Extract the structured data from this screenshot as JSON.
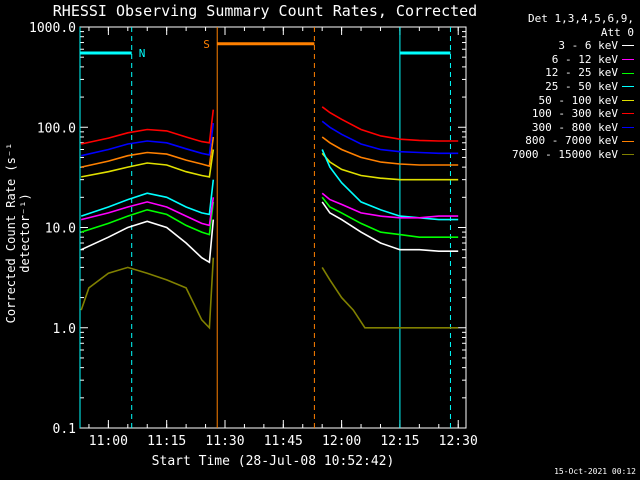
{
  "chart_data": {
    "type": "line",
    "title": "RHESSI Observing Summary Count Rates, Corrected",
    "xlabel": "Start Time (28-Jul-08 10:52:42)",
    "ylabel": "Corrected Count Rate (s⁻¹ detector⁻¹)",
    "yscale": "log",
    "ylim": [
      0.1,
      1000.0
    ],
    "ytick_labels": [
      "0.1",
      "1.0",
      "10.0",
      "100.0",
      "1000.0"
    ],
    "yticks": [
      0.1,
      1.0,
      10.0,
      100.0,
      1000.0
    ],
    "xlim": [
      "10:52:42",
      "12:32:00"
    ],
    "xtick_labels": [
      "11:00",
      "11:15",
      "11:30",
      "11:45",
      "12:00",
      "12:15",
      "12:30"
    ],
    "xticks": [
      "11:00",
      "11:15",
      "11:30",
      "11:45",
      "12:00",
      "12:15",
      "12:30"
    ],
    "legend_header": [
      "Det 1,3,4,5,6,9,",
      "Att 0"
    ],
    "legend_position": "right",
    "series": [
      {
        "name": "3 - 6 keV",
        "color": "#ffffff",
        "points": [
          [
            "10:53",
            6.0
          ],
          [
            "11:00",
            8.0
          ],
          [
            "11:05",
            10.0
          ],
          [
            "11:10",
            11.5
          ],
          [
            "11:15",
            10.0
          ],
          [
            "11:20",
            7.0
          ],
          [
            "11:24",
            5.0
          ],
          [
            "11:26",
            4.5
          ],
          [
            "11:27",
            12.0
          ],
          [
            "11:55",
            18.0
          ],
          [
            "11:57",
            14.0
          ],
          [
            "12:00",
            12.0
          ],
          [
            "12:05",
            9.0
          ],
          [
            "12:10",
            7.0
          ],
          [
            "12:15",
            6.0
          ],
          [
            "12:20",
            6.0
          ],
          [
            "12:25",
            5.8
          ],
          [
            "12:30",
            5.8
          ]
        ]
      },
      {
        "name": "6 - 12 keV",
        "color": "#ff00ff",
        "points": [
          [
            "10:53",
            12.0
          ],
          [
            "11:00",
            14.0
          ],
          [
            "11:05",
            16.0
          ],
          [
            "11:10",
            18.0
          ],
          [
            "11:15",
            16.0
          ],
          [
            "11:20",
            13.0
          ],
          [
            "11:24",
            11.0
          ],
          [
            "11:26",
            10.5
          ],
          [
            "11:27",
            20.0
          ],
          [
            "11:55",
            22.0
          ],
          [
            "11:57",
            19.0
          ],
          [
            "12:00",
            17.0
          ],
          [
            "12:05",
            14.0
          ],
          [
            "12:10",
            13.0
          ],
          [
            "12:15",
            12.5
          ],
          [
            "12:20",
            12.5
          ],
          [
            "12:25",
            13.0
          ],
          [
            "12:30",
            13.0
          ]
        ]
      },
      {
        "name": "12 - 25 keV",
        "color": "#00ff00",
        "points": [
          [
            "10:53",
            9.0
          ],
          [
            "11:00",
            11.0
          ],
          [
            "11:05",
            13.0
          ],
          [
            "11:10",
            15.0
          ],
          [
            "11:15",
            13.5
          ],
          [
            "11:20",
            10.5
          ],
          [
            "11:24",
            9.0
          ],
          [
            "11:26",
            8.5
          ],
          [
            "11:27",
            18.0
          ],
          [
            "11:55",
            20.0
          ],
          [
            "11:57",
            16.0
          ],
          [
            "12:00",
            14.0
          ],
          [
            "12:05",
            11.0
          ],
          [
            "12:10",
            9.0
          ],
          [
            "12:15",
            8.5
          ],
          [
            "12:20",
            8.0
          ],
          [
            "12:25",
            8.0
          ],
          [
            "12:30",
            8.0
          ]
        ]
      },
      {
        "name": "25 - 50 keV",
        "color": "#00ffff",
        "points": [
          [
            "10:53",
            13.0
          ],
          [
            "11:00",
            16.0
          ],
          [
            "11:05",
            19.0
          ],
          [
            "11:10",
            22.0
          ],
          [
            "11:15",
            20.0
          ],
          [
            "11:20",
            16.0
          ],
          [
            "11:24",
            14.0
          ],
          [
            "11:26",
            13.5
          ],
          [
            "11:27",
            30.0
          ],
          [
            "11:55",
            60.0
          ],
          [
            "11:57",
            40.0
          ],
          [
            "12:00",
            28.0
          ],
          [
            "12:05",
            18.0
          ],
          [
            "12:10",
            15.0
          ],
          [
            "12:15",
            13.0
          ],
          [
            "12:20",
            12.5
          ],
          [
            "12:25",
            12.0
          ],
          [
            "12:30",
            12.0
          ]
        ]
      },
      {
        "name": "50 - 100 keV",
        "color": "#e0e000",
        "points": [
          [
            "10:53",
            32.0
          ],
          [
            "11:00",
            36.0
          ],
          [
            "11:05",
            40.0
          ],
          [
            "11:10",
            44.0
          ],
          [
            "11:15",
            42.0
          ],
          [
            "11:20",
            36.0
          ],
          [
            "11:24",
            33.0
          ],
          [
            "11:26",
            32.0
          ],
          [
            "11:27",
            60.0
          ],
          [
            "11:55",
            55.0
          ],
          [
            "11:57",
            45.0
          ],
          [
            "12:00",
            38.0
          ],
          [
            "12:05",
            33.0
          ],
          [
            "12:10",
            31.0
          ],
          [
            "12:15",
            30.0
          ],
          [
            "12:20",
            30.0
          ],
          [
            "12:25",
            30.0
          ],
          [
            "12:30",
            30.0
          ]
        ]
      },
      {
        "name": "100 - 300 keV",
        "color": "#ff0000",
        "points": [
          [
            "10:53",
            68.0
          ],
          [
            "11:00",
            78.0
          ],
          [
            "11:05",
            88.0
          ],
          [
            "11:10",
            95.0
          ],
          [
            "11:15",
            92.0
          ],
          [
            "11:20",
            80.0
          ],
          [
            "11:24",
            72.0
          ],
          [
            "11:26",
            70.0
          ],
          [
            "11:27",
            150.0
          ],
          [
            "11:55",
            160.0
          ],
          [
            "11:57",
            140.0
          ],
          [
            "12:00",
            120.0
          ],
          [
            "12:05",
            95.0
          ],
          [
            "12:10",
            82.0
          ],
          [
            "12:15",
            76.0
          ],
          [
            "12:20",
            74.0
          ],
          [
            "12:25",
            73.0
          ],
          [
            "12:30",
            73.0
          ]
        ]
      },
      {
        "name": "300 - 800 keV",
        "color": "#0000ff",
        "points": [
          [
            "10:53",
            52.0
          ],
          [
            "11:00",
            60.0
          ],
          [
            "11:05",
            68.0
          ],
          [
            "11:10",
            73.0
          ],
          [
            "11:15",
            70.0
          ],
          [
            "11:20",
            61.0
          ],
          [
            "11:24",
            55.0
          ],
          [
            "11:26",
            53.0
          ],
          [
            "11:27",
            110.0
          ],
          [
            "11:55",
            115.0
          ],
          [
            "11:57",
            100.0
          ],
          [
            "12:00",
            85.0
          ],
          [
            "12:05",
            68.0
          ],
          [
            "12:10",
            60.0
          ],
          [
            "12:15",
            57.0
          ],
          [
            "12:20",
            56.0
          ],
          [
            "12:25",
            55.0
          ],
          [
            "12:30",
            55.0
          ]
        ]
      },
      {
        "name": "800 - 7000 keV",
        "color": "#ff8000",
        "points": [
          [
            "10:53",
            40.0
          ],
          [
            "11:00",
            46.0
          ],
          [
            "11:05",
            52.0
          ],
          [
            "11:10",
            56.0
          ],
          [
            "11:15",
            54.0
          ],
          [
            "11:20",
            47.0
          ],
          [
            "11:24",
            43.0
          ],
          [
            "11:26",
            41.0
          ],
          [
            "11:27",
            80.0
          ],
          [
            "11:55",
            80.0
          ],
          [
            "11:57",
            70.0
          ],
          [
            "12:00",
            60.0
          ],
          [
            "12:05",
            50.0
          ],
          [
            "12:10",
            45.0
          ],
          [
            "12:15",
            43.0
          ],
          [
            "12:20",
            42.0
          ],
          [
            "12:25",
            42.0
          ],
          [
            "12:30",
            42.0
          ]
        ]
      },
      {
        "name": "7000 - 15000 keV",
        "color": "#808000",
        "points": [
          [
            "10:53",
            1.5
          ],
          [
            "10:55",
            2.5
          ],
          [
            "11:00",
            3.5
          ],
          [
            "11:05",
            4.0
          ],
          [
            "11:10",
            3.5
          ],
          [
            "11:15",
            3.0
          ],
          [
            "11:20",
            2.5
          ],
          [
            "11:24",
            1.2
          ],
          [
            "11:26",
            1.0
          ],
          [
            "11:27",
            5.0
          ],
          [
            "11:55",
            4.0
          ],
          [
            "11:57",
            3.0
          ],
          [
            "12:00",
            2.0
          ],
          [
            "12:03",
            1.5
          ],
          [
            "12:06",
            1.0
          ],
          [
            "12:10",
            1.0
          ],
          [
            "12:20",
            1.0
          ],
          [
            "12:30",
            1.0
          ]
        ]
      }
    ],
    "annotations": {
      "night_label": "N",
      "saa_label": "S",
      "night_intervals": [
        [
          "10:52:42",
          "11:06"
        ],
        [
          "12:15",
          "12:28"
        ]
      ],
      "saa_interval": [
        "11:28",
        "11:53"
      ],
      "night_color": "#00ffff",
      "saa_color": "#ff8000"
    }
  },
  "timestamp": "15-Oct-2021 00:12"
}
